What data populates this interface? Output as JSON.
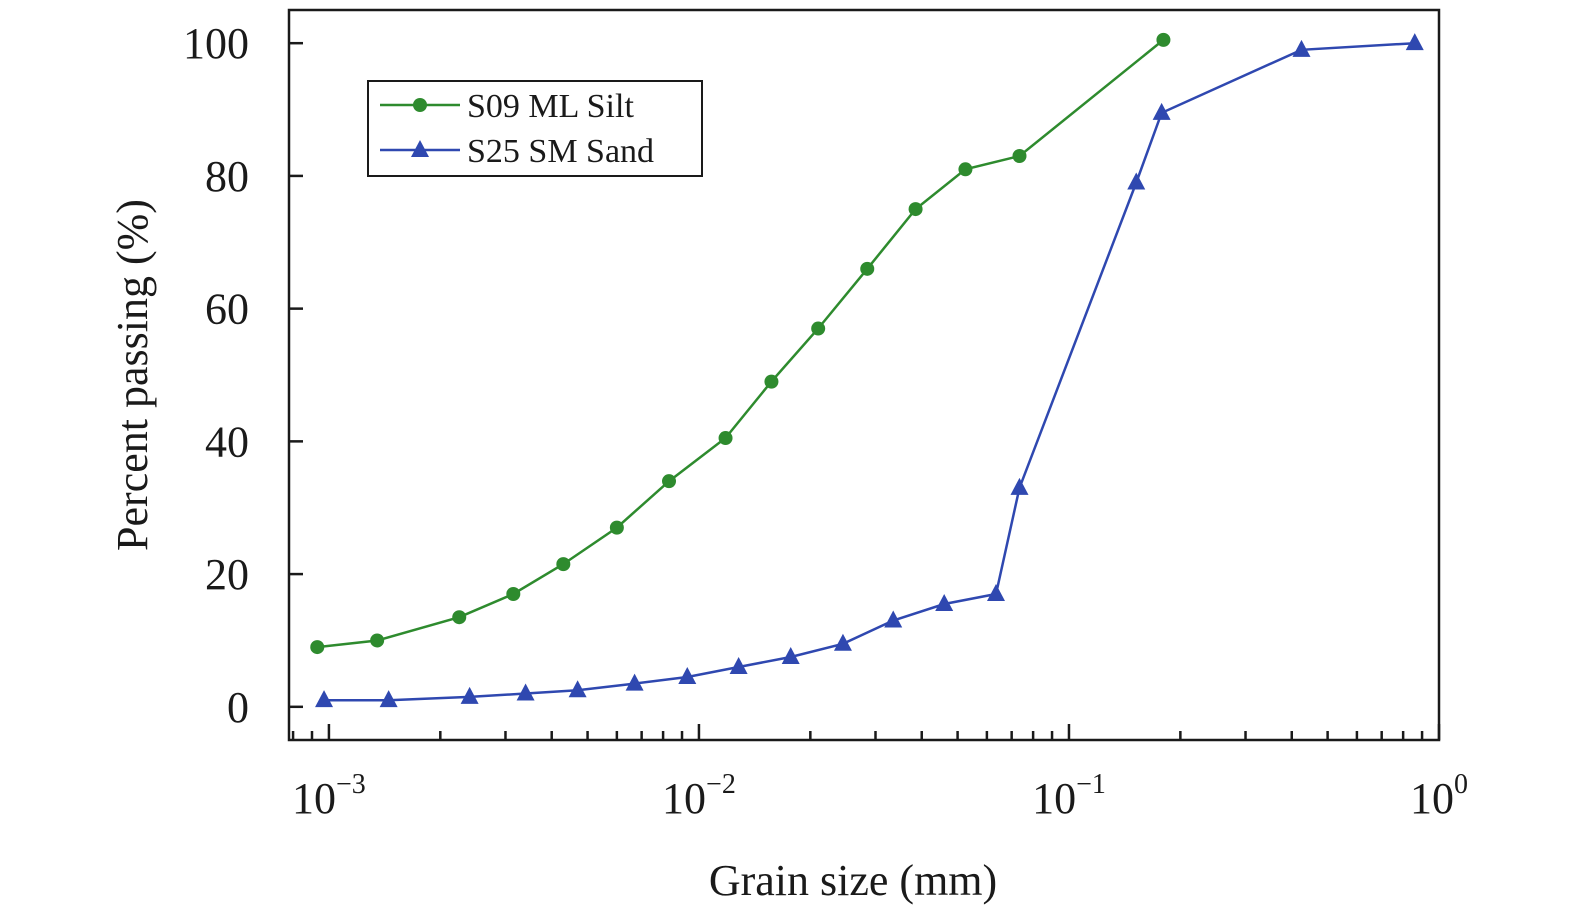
{
  "chart_data": {
    "type": "line",
    "xscale": "log",
    "xlabel": "Grain size (mm)",
    "ylabel": "Percent passing (%)",
    "xlim": [
      0.00078,
      1.0
    ],
    "ylim": [
      -5,
      105
    ],
    "y_ticks": [
      {
        "value": 0,
        "label": "0"
      },
      {
        "value": 20,
        "label": "20"
      },
      {
        "value": 40,
        "label": "40"
      },
      {
        "value": 60,
        "label": "60"
      },
      {
        "value": 80,
        "label": "80"
      },
      {
        "value": 100,
        "label": "100"
      }
    ],
    "x_ticks": [
      {
        "value": 0.001,
        "base": "10",
        "exp": "−3"
      },
      {
        "value": 0.01,
        "base": "10",
        "exp": "−2"
      },
      {
        "value": 0.1,
        "base": "10",
        "exp": "−1"
      },
      {
        "value": 1,
        "base": "10",
        "exp": "0"
      }
    ],
    "legend_position": "top-left",
    "series": [
      {
        "name": "S09 ML Silt",
        "color": "#2e8b2e",
        "marker": "circle",
        "x": [
          0.00093,
          0.00135,
          0.00225,
          0.00315,
          0.0043,
          0.006,
          0.0083,
          0.0118,
          0.0157,
          0.021,
          0.0285,
          0.0385,
          0.0525,
          0.0735,
          0.18
        ],
        "y": [
          9,
          10,
          13.5,
          17,
          21.5,
          27,
          34,
          40.5,
          49,
          57,
          66,
          75,
          81,
          83,
          100.5
        ]
      },
      {
        "name": "S25 SM Sand",
        "color": "#2f48b0",
        "marker": "triangle",
        "x": [
          0.00097,
          0.00145,
          0.0024,
          0.0034,
          0.0047,
          0.0067,
          0.0093,
          0.0128,
          0.0177,
          0.0245,
          0.0335,
          0.046,
          0.0635,
          0.0735,
          0.152,
          0.178,
          0.425,
          0.86
        ],
        "y": [
          1,
          1,
          1.5,
          2,
          2.5,
          3.5,
          4.5,
          6,
          7.5,
          9.5,
          13,
          15.5,
          17,
          33,
          79,
          89.5,
          99,
          100
        ]
      }
    ]
  }
}
